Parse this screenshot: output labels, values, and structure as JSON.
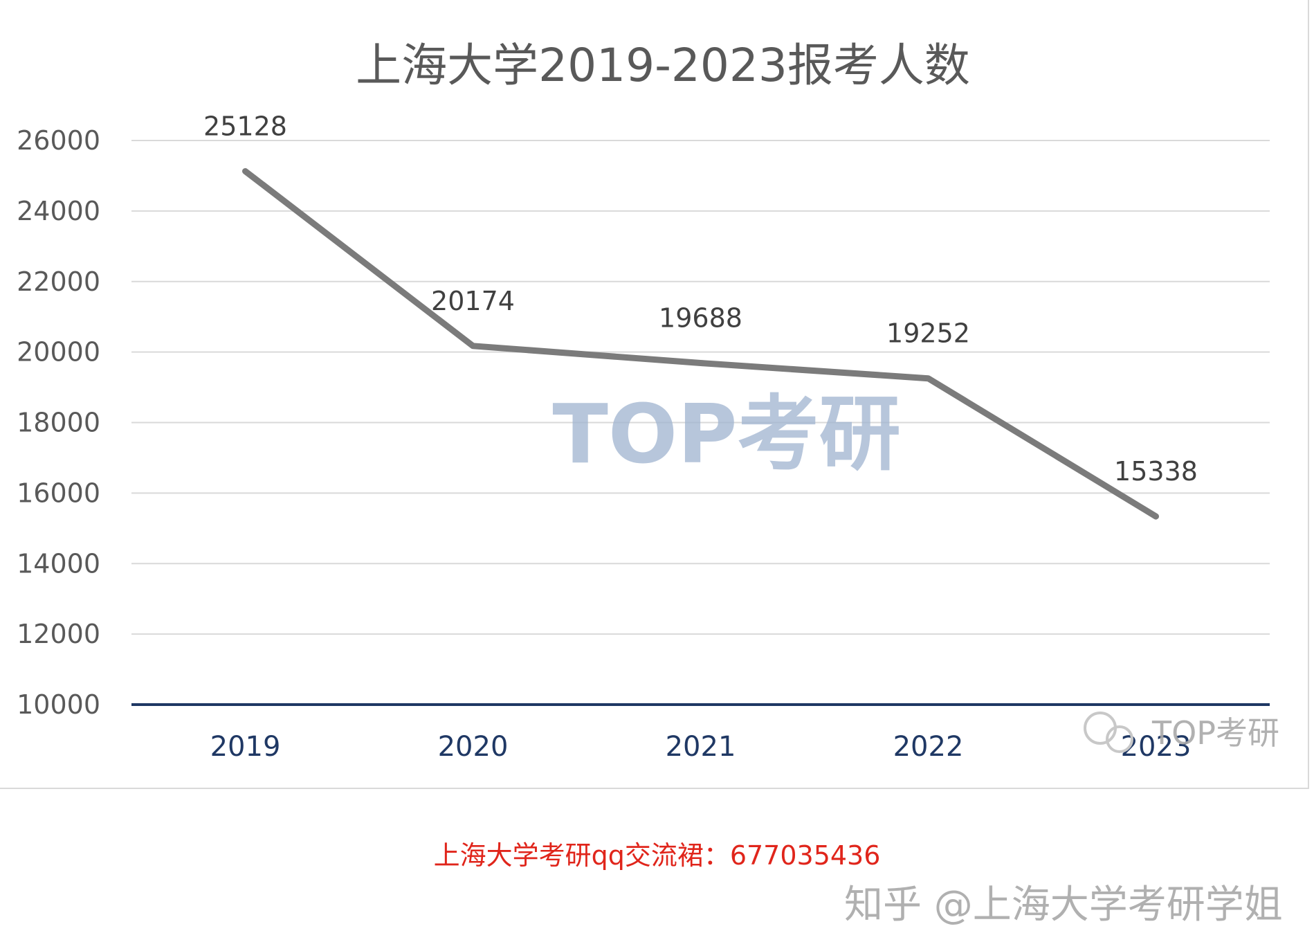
{
  "chart_data": {
    "type": "line",
    "title": "上海大学2019-2023报考人数",
    "categories": [
      "2019",
      "2020",
      "2021",
      "2022",
      "2023"
    ],
    "series": [
      {
        "values": [
          25128,
          20174,
          19688,
          19252,
          15338
        ]
      }
    ],
    "data_labels": [
      "25128",
      "20174",
      "19688",
      "19252",
      "15338"
    ],
    "y_ticks": [
      "10000",
      "12000",
      "14000",
      "16000",
      "18000",
      "20000",
      "22000",
      "24000",
      "26000"
    ],
    "ylim": [
      10000,
      26000
    ],
    "grid": true,
    "legend": "none",
    "colors": {
      "line": "#7b7b7b",
      "x_axis": "#1f3864",
      "x_tick_text": "#1f3864",
      "y_tick_text": "#595959",
      "grid": "#d9d9d9"
    }
  },
  "watermark": {
    "center_text": "TOP考研",
    "corner_text": "TOP考研"
  },
  "captions": {
    "group": "上海大学考研qq交流裙：677035436",
    "credit": "知乎 @上海大学考研学姐"
  }
}
